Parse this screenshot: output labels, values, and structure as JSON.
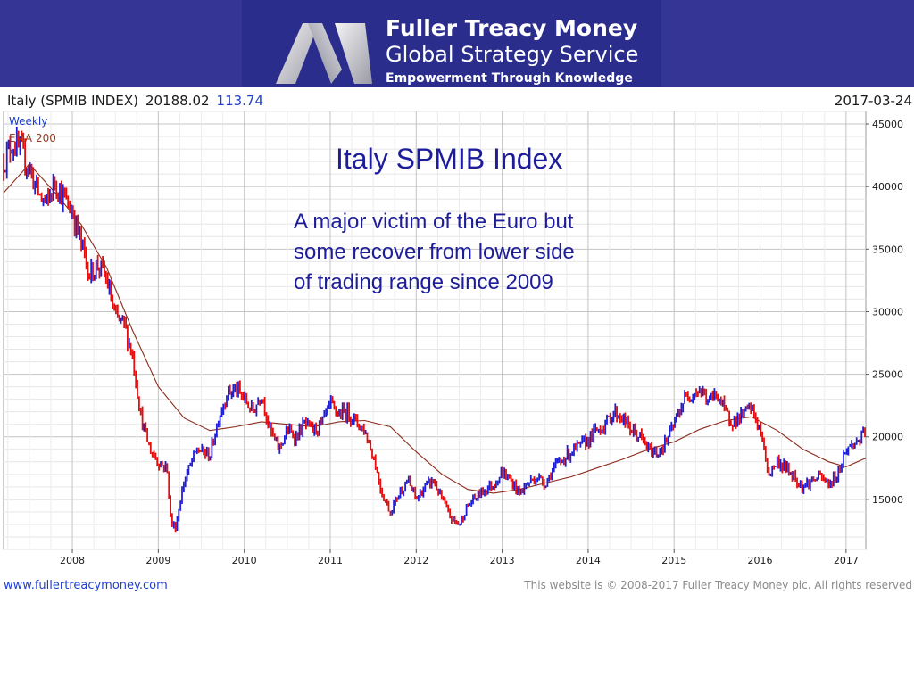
{
  "header": {
    "brand_name": "Fuller Treacy Money",
    "brand_subtitle": "Global Strategy Service",
    "brand_tagline": "Empowerment Through Knowledge"
  },
  "chart_header": {
    "instrument": "Italy (SPMIB INDEX)",
    "last_value": "20188.02",
    "change": "113.74",
    "date": "2017-03-24"
  },
  "legend": {
    "weekly": "Weekly",
    "ema": "EMA 200"
  },
  "annotation": {
    "title": "Italy SPMIB Index",
    "note_lines": [
      "A major victim of the Euro but",
      "some recover from lower side",
      "of trading range since 2009"
    ]
  },
  "footer": {
    "url": "www.fullertreacymoney.com",
    "copyright": "This website is © 2008-2017 Fuller Treacy Money plc. All rights reserved"
  },
  "colors": {
    "up": "#1f1fd6",
    "down": "#e01010",
    "ema": "#8b2a1a",
    "banner": "#343594",
    "title": "#1d1d9a"
  },
  "chart_data": {
    "type": "line",
    "frequency": "weekly",
    "x_start": 2007.2,
    "ylim": [
      11000,
      46000
    ],
    "xlim": [
      2007.2,
      2017.23
    ],
    "grid": true,
    "y_ticks": [
      15000,
      20000,
      25000,
      30000,
      35000,
      40000,
      45000
    ],
    "y_tick_labels": [
      "15000",
      "20000",
      "25000",
      "30000",
      "35000",
      "40000",
      "45000"
    ],
    "x_ticks": [
      2008,
      2009,
      2010,
      2011,
      2012,
      2013,
      2014,
      2015,
      2016,
      2017
    ],
    "x_tick_labels": [
      "2008",
      "2009",
      "2010",
      "2011",
      "2012",
      "2013",
      "2014",
      "2015",
      "2016",
      "2017"
    ],
    "series": [
      {
        "name": "Weekly",
        "x": [
          2007.2,
          2007.3,
          2007.4,
          2007.5,
          2007.6,
          2007.7,
          2007.8,
          2007.9,
          2008.0,
          2008.1,
          2008.2,
          2008.3,
          2008.4,
          2008.5,
          2008.6,
          2008.7,
          2008.8,
          2008.9,
          2009.0,
          2009.1,
          2009.15,
          2009.2,
          2009.3,
          2009.45,
          2009.6,
          2009.7,
          2009.8,
          2009.9,
          2010.0,
          2010.1,
          2010.2,
          2010.3,
          2010.4,
          2010.5,
          2010.6,
          2010.7,
          2010.8,
          2010.9,
          2011.0,
          2011.1,
          2011.2,
          2011.3,
          2011.4,
          2011.5,
          2011.6,
          2011.7,
          2011.8,
          2011.9,
          2012.0,
          2012.1,
          2012.2,
          2012.3,
          2012.4,
          2012.5,
          2012.6,
          2012.7,
          2012.8,
          2012.9,
          2013.0,
          2013.1,
          2013.2,
          2013.3,
          2013.4,
          2013.5,
          2013.6,
          2013.7,
          2013.8,
          2013.9,
          2014.0,
          2014.1,
          2014.2,
          2014.3,
          2014.4,
          2014.5,
          2014.6,
          2014.7,
          2014.8,
          2014.9,
          2015.0,
          2015.1,
          2015.2,
          2015.3,
          2015.4,
          2015.5,
          2015.6,
          2015.7,
          2015.8,
          2015.9,
          2016.0,
          2016.1,
          2016.2,
          2016.3,
          2016.4,
          2016.5,
          2016.6,
          2016.7,
          2016.8,
          2016.9,
          2017.0,
          2017.1,
          2017.23
        ],
        "y": [
          42000,
          43500,
          42800,
          41500,
          39500,
          38500,
          40500,
          39000,
          38000,
          35500,
          33000,
          33800,
          32500,
          29500,
          29000,
          26500,
          21500,
          19000,
          18000,
          17500,
          13000,
          12800,
          16500,
          19000,
          18500,
          21500,
          23500,
          23800,
          23000,
          22000,
          23500,
          20500,
          19000,
          20500,
          20000,
          21000,
          20500,
          21000,
          22500,
          21800,
          22000,
          21200,
          20500,
          18500,
          15500,
          14000,
          15500,
          16500,
          15000,
          16000,
          16500,
          15000,
          13500,
          13000,
          14500,
          15200,
          15800,
          16200,
          17200,
          16500,
          15500,
          16300,
          16800,
          16300,
          17500,
          18200,
          18800,
          19200,
          19800,
          20500,
          21000,
          22000,
          21500,
          20500,
          20000,
          19000,
          18700,
          19500,
          21000,
          22800,
          23500,
          23800,
          22800,
          23500,
          21800,
          21200,
          21800,
          22300,
          20500,
          17000,
          18000,
          17500,
          16800,
          16000,
          16500,
          16800,
          16200,
          17000,
          19000,
          19500,
          20188
        ]
      },
      {
        "name": "EMA 200",
        "x": [
          2007.2,
          2007.5,
          2007.8,
          2008.1,
          2008.4,
          2008.7,
          2009.0,
          2009.3,
          2009.6,
          2009.9,
          2010.2,
          2010.5,
          2010.8,
          2011.1,
          2011.4,
          2011.7,
          2012.0,
          2012.3,
          2012.6,
          2012.9,
          2013.2,
          2013.5,
          2013.8,
          2014.1,
          2014.4,
          2014.7,
          2015.0,
          2015.3,
          2015.6,
          2015.9,
          2016.2,
          2016.5,
          2016.8,
          2017.0,
          2017.23
        ],
        "y": [
          39500,
          41800,
          39500,
          37000,
          33500,
          28500,
          24000,
          21500,
          20500,
          20800,
          21200,
          21000,
          20800,
          21200,
          21300,
          20800,
          18800,
          17000,
          15800,
          15500,
          15800,
          16300,
          16800,
          17500,
          18200,
          19000,
          19600,
          20600,
          21300,
          21600,
          20500,
          19000,
          18000,
          17600,
          18300
        ]
      }
    ]
  }
}
